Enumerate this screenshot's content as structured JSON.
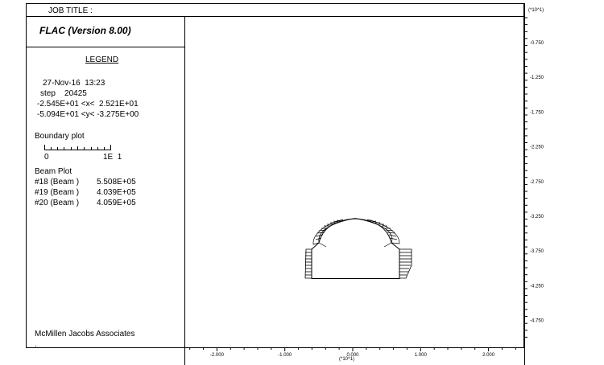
{
  "header": {
    "job_title_label": "JOB TITLE :",
    "app_title": "FLAC (Version 8.00)"
  },
  "legend": {
    "title": "LEGEND",
    "date_time": "27-Nov-16  13:23",
    "step": "step    20425",
    "x_range": "-2.545E+01 <x<  2.521E+01",
    "y_range": "-5.094E+01 <y< -3.275E+00",
    "boundary_plot_label": "Boundary plot",
    "scale_zero": "0",
    "scale_end": "1E  1",
    "beam_plot_label": "Beam Plot",
    "beams": [
      {
        "name": "#18 (Beam )",
        "value": "5.508E+05"
      },
      {
        "name": "#19 (Beam )",
        "value": "4.039E+05"
      },
      {
        "name": "#20 (Beam )",
        "value": "4.059E+05"
      }
    ]
  },
  "footer": {
    "company": "McMillen Jacobs Associates",
    "dot": "."
  },
  "axes": {
    "y_multiplier": "(*10^1)",
    "x_multiplier": "(*10^1)",
    "y_ticks": [
      "-0.750",
      "-1.250",
      "-1.750",
      "-2.250",
      "-2.750",
      "-3.250",
      "-3.750",
      "-4.250",
      "-4.750"
    ],
    "x_ticks": [
      "-2.000",
      "-1.000",
      "0.000",
      "1.000",
      "2.000"
    ]
  }
}
